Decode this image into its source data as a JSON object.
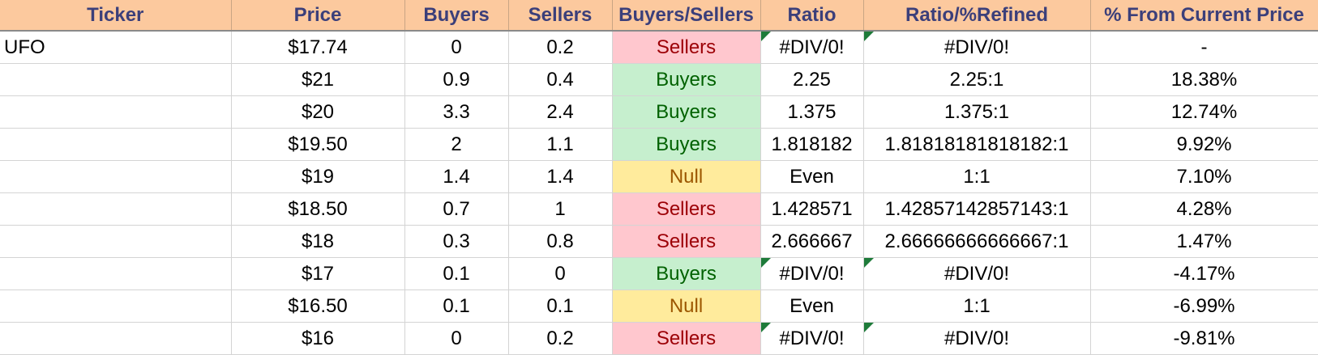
{
  "columns": [
    "Ticker",
    "Price",
    "Buyers",
    "Sellers",
    "Buyers/Sellers",
    "Ratio",
    "Ratio/%Refined",
    "% From Current Price"
  ],
  "rows": [
    {
      "ticker": "UFO",
      "price": "$17.74",
      "buyers": "0",
      "sellers": "0.2",
      "verdict": "Sellers",
      "ratio": "#DIV/0!",
      "refined": "#DIV/0!",
      "pct": "-",
      "error": true
    },
    {
      "ticker": "",
      "price": "$21",
      "buyers": "0.9",
      "sellers": "0.4",
      "verdict": "Buyers",
      "ratio": "2.25",
      "refined": "2.25:1",
      "pct": "18.38%",
      "error": false
    },
    {
      "ticker": "",
      "price": "$20",
      "buyers": "3.3",
      "sellers": "2.4",
      "verdict": "Buyers",
      "ratio": "1.375",
      "refined": "1.375:1",
      "pct": "12.74%",
      "error": false
    },
    {
      "ticker": "",
      "price": "$19.50",
      "buyers": "2",
      "sellers": "1.1",
      "verdict": "Buyers",
      "ratio": "1.818182",
      "refined": "1.81818181818182:1",
      "pct": "9.92%",
      "error": false
    },
    {
      "ticker": "",
      "price": "$19",
      "buyers": "1.4",
      "sellers": "1.4",
      "verdict": "Null",
      "ratio": "Even",
      "refined": "1:1",
      "pct": "7.10%",
      "error": false
    },
    {
      "ticker": "",
      "price": "$18.50",
      "buyers": "0.7",
      "sellers": "1",
      "verdict": "Sellers",
      "ratio": "1.428571",
      "refined": "1.42857142857143:1",
      "pct": "4.28%",
      "error": false
    },
    {
      "ticker": "",
      "price": "$18",
      "buyers": "0.3",
      "sellers": "0.8",
      "verdict": "Sellers",
      "ratio": "2.666667",
      "refined": "2.66666666666667:1",
      "pct": "1.47%",
      "error": false
    },
    {
      "ticker": "",
      "price": "$17",
      "buyers": "0.1",
      "sellers": "0",
      "verdict": "Buyers",
      "ratio": "#DIV/0!",
      "refined": "#DIV/0!",
      "pct": "-4.17%",
      "error": true
    },
    {
      "ticker": "",
      "price": "$16.50",
      "buyers": "0.1",
      "sellers": "0.1",
      "verdict": "Null",
      "ratio": "Even",
      "refined": "1:1",
      "pct": "-6.99%",
      "error": false
    },
    {
      "ticker": "",
      "price": "$16",
      "buyers": "0",
      "sellers": "0.2",
      "verdict": "Sellers",
      "ratio": "#DIV/0!",
      "refined": "#DIV/0!",
      "pct": "-9.81%",
      "error": true
    }
  ],
  "colors": {
    "header_bg": "#fcc99e",
    "header_text": "#3b3f7a",
    "sellers_bg": "#ffc7ce",
    "sellers_text": "#9c0006",
    "buyers_bg": "#c6efce",
    "buyers_text": "#006100",
    "null_bg": "#ffeb9c",
    "null_text": "#9c5700",
    "error_marker": "#1e7b3a"
  }
}
